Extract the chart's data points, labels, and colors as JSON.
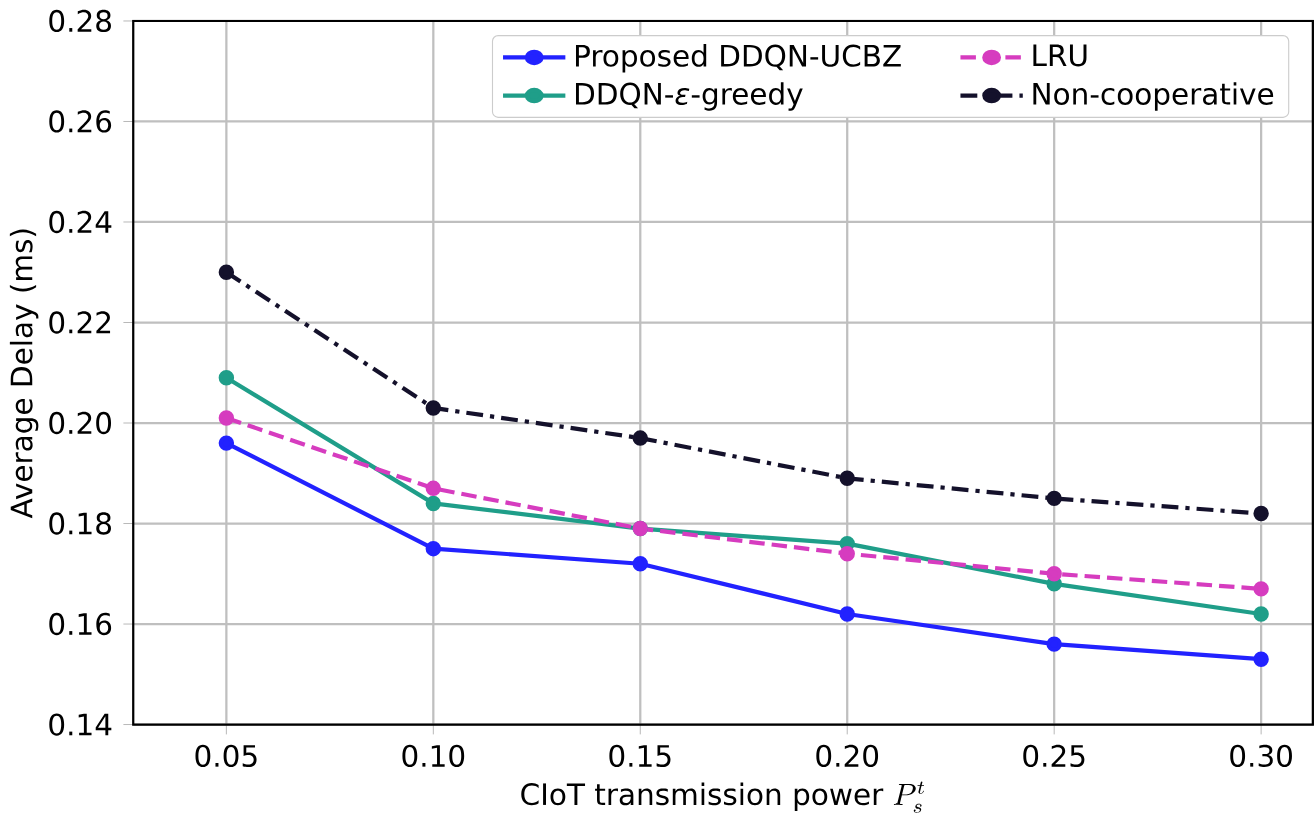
{
  "chart_data": {
    "type": "line",
    "xlabel": "\\text{CIoT transmission power }P_s^t",
    "ylabel": "Average Delay (ms)",
    "x": [
      0.05,
      0.1,
      0.15,
      0.2,
      0.25,
      0.3
    ],
    "series": [
      {
        "name": "Proposed DDQN-UCBZ",
        "color": "#2222ff",
        "line_style": "solid",
        "values": [
          0.196,
          0.175,
          0.172,
          0.162,
          0.156,
          0.153
        ]
      },
      {
        "name": "DDQN-*ε*-greedy",
        "color": "#1f9e89",
        "line_style": "solid",
        "values": [
          0.209,
          0.184,
          0.179,
          0.176,
          0.168,
          0.162
        ]
      },
      {
        "name": "LRU",
        "color": "#d63cbf",
        "line_style": "dashed",
        "values": [
          0.201,
          0.187,
          0.179,
          0.174,
          0.17,
          0.167
        ]
      },
      {
        "name": "Non-cooperative",
        "color": "#14112b",
        "line_style": "dashdot",
        "values": [
          0.23,
          0.203,
          0.197,
          0.189,
          0.185,
          0.182
        ]
      }
    ],
    "xlim": [
      0.0275,
      0.3125
    ],
    "xticks": [
      {
        "value": 0.05,
        "label": "0.05"
      },
      {
        "value": 0.1,
        "label": "0.10"
      },
      {
        "value": 0.15,
        "label": "0.15"
      },
      {
        "value": 0.2,
        "label": "0.20"
      },
      {
        "value": 0.25,
        "label": "0.25"
      },
      {
        "value": 0.3,
        "label": "0.30"
      }
    ],
    "ylim": [
      0.14,
      0.28
    ],
    "yticks": [
      {
        "value": 0.14,
        "label": "0.14"
      },
      {
        "value": 0.16,
        "label": "0.16"
      },
      {
        "value": 0.18,
        "label": "0.18"
      },
      {
        "value": 0.2,
        "label": "0.20"
      },
      {
        "value": 0.22,
        "label": "0.22"
      },
      {
        "value": 0.24,
        "label": "0.24"
      },
      {
        "value": 0.26,
        "label": "0.26"
      },
      {
        "value": 0.28,
        "label": "0.28"
      }
    ],
    "grid": true,
    "legend": "top",
    "marker": "circle"
  }
}
